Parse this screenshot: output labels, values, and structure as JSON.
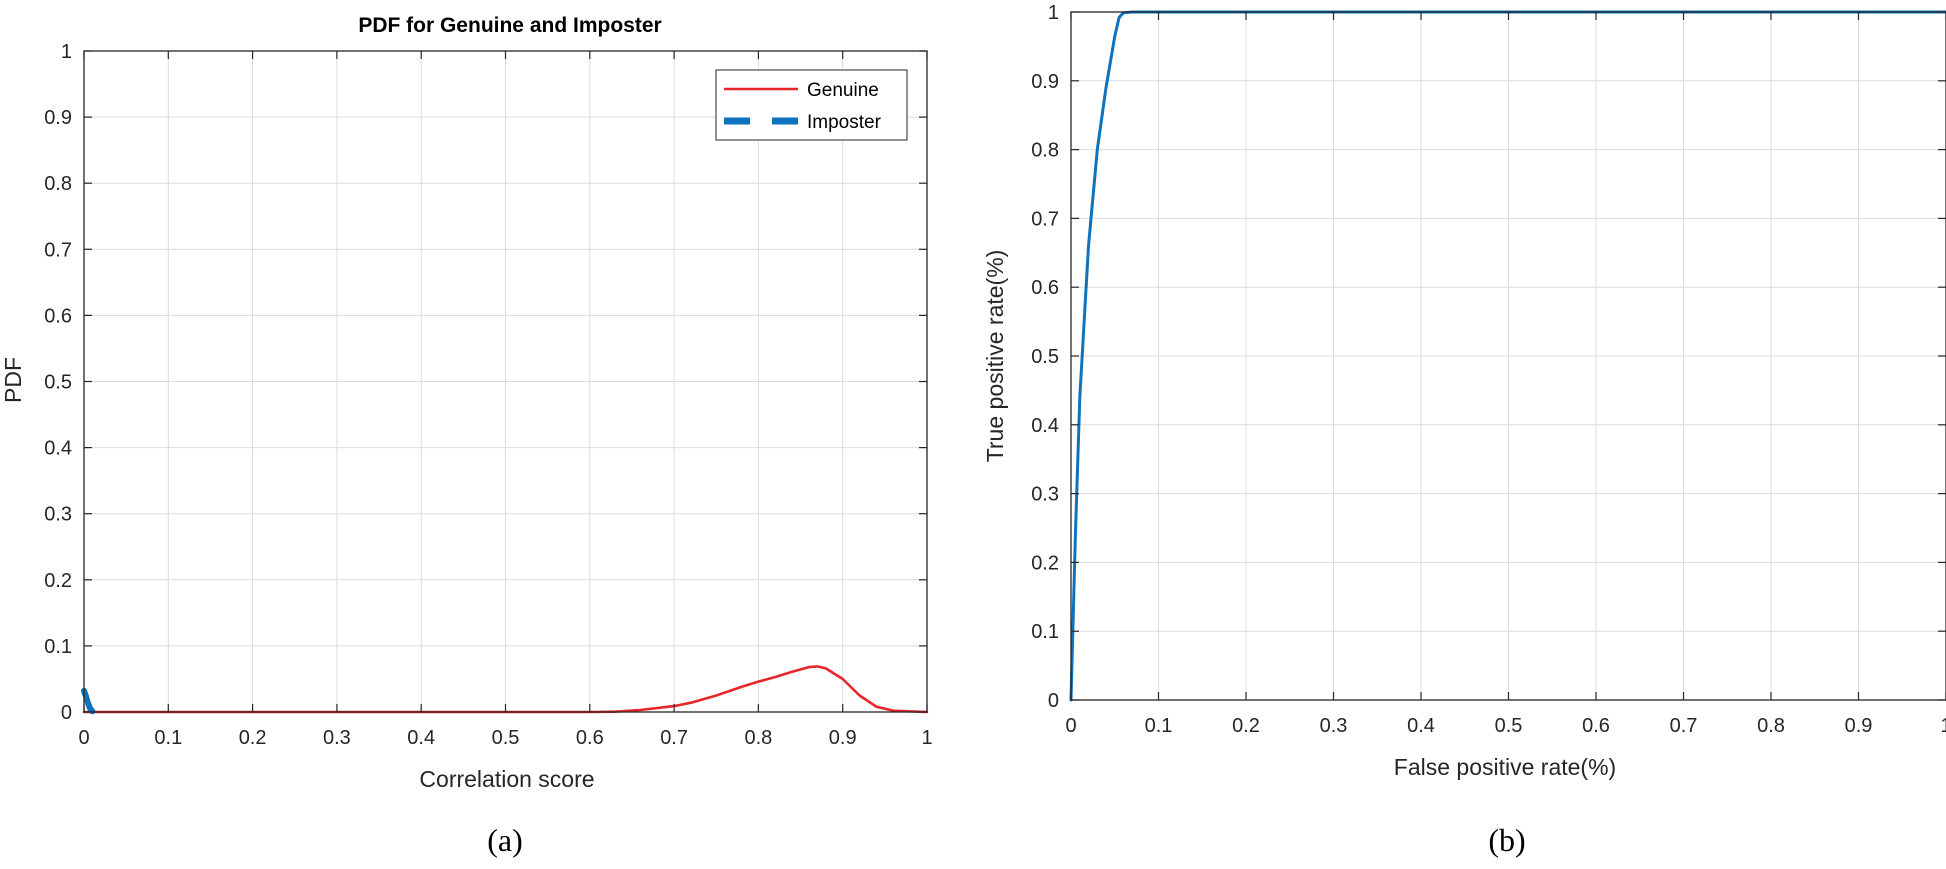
{
  "chart_data": [
    {
      "type": "line",
      "title": "PDF for Genuine and Imposter",
      "xlabel": "Correlation score",
      "ylabel": "PDF",
      "xlim": [
        0,
        1
      ],
      "ylim": [
        0,
        1
      ],
      "xticks": [
        "0",
        "0.1",
        "0.2",
        "0.3",
        "0.4",
        "0.5",
        "0.6",
        "0.7",
        "0.8",
        "0.9",
        "1"
      ],
      "yticks": [
        "0",
        "0.1",
        "0.2",
        "0.3",
        "0.4",
        "0.5",
        "0.6",
        "0.7",
        "0.8",
        "0.9",
        "1"
      ],
      "grid": true,
      "legend_position": "top-right",
      "caption": "(a)",
      "series": [
        {
          "name": "Genuine",
          "color": "#e8262a",
          "style": "solid",
          "x": [
            0,
            0.1,
            0.2,
            0.3,
            0.4,
            0.5,
            0.6,
            0.63,
            0.66,
            0.7,
            0.72,
            0.75,
            0.78,
            0.8,
            0.82,
            0.84,
            0.86,
            0.87,
            0.88,
            0.9,
            0.92,
            0.94,
            0.96,
            1.0
          ],
          "values": [
            0,
            0,
            0,
            0,
            0,
            0,
            0,
            0.0005,
            0.003,
            0.009,
            0.014,
            0.025,
            0.038,
            0.046,
            0.053,
            0.061,
            0.068,
            0.069,
            0.066,
            0.05,
            0.025,
            0.008,
            0.002,
            0
          ]
        },
        {
          "name": "Imposter",
          "color": "#0f72bd",
          "style": "dashed",
          "x": [
            0,
            0.002,
            0.004,
            0.006,
            0.008,
            0.01
          ],
          "values": [
            0.032,
            0.025,
            0.016,
            0.009,
            0.004,
            0.001
          ]
        }
      ]
    },
    {
      "type": "line",
      "title": "",
      "xlabel": "False positive rate(%)",
      "ylabel": "True positive rate(%)",
      "xlim": [
        0,
        1
      ],
      "ylim": [
        0,
        1
      ],
      "xticks": [
        "0",
        "0.1",
        "0.2",
        "0.3",
        "0.4",
        "0.5",
        "0.6",
        "0.7",
        "0.8",
        "0.9",
        "1"
      ],
      "yticks": [
        "0",
        "0.1",
        "0.2",
        "0.3",
        "0.4",
        "0.5",
        "0.6",
        "0.7",
        "0.8",
        "0.9",
        "1"
      ],
      "grid": true,
      "caption": "(b)",
      "series": [
        {
          "color": "#0f72bd",
          "style": "solid",
          "x": [
            0,
            0.005,
            0.01,
            0.02,
            0.03,
            0.04,
            0.05,
            0.055,
            0.06,
            0.07,
            0.1,
            0.5,
            1.0
          ],
          "values": [
            0,
            0.24,
            0.44,
            0.66,
            0.8,
            0.89,
            0.965,
            0.992,
            0.999,
            1,
            1,
            1,
            1
          ]
        }
      ]
    }
  ]
}
